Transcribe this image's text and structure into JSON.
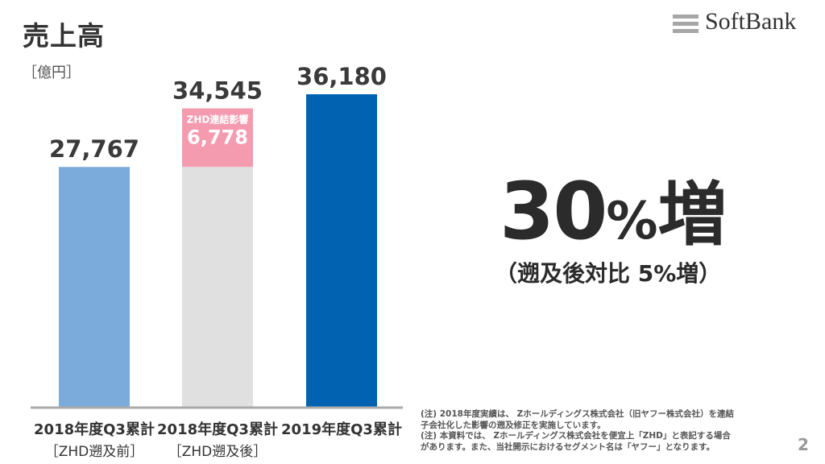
{
  "title": "売上高",
  "unit": "［億円］",
  "logo": {
    "text": "SoftBank"
  },
  "chart_data": {
    "type": "bar",
    "title": "売上高",
    "ylabel": "［億円］",
    "ylim": [
      0,
      36180
    ],
    "categories": [
      {
        "line1": "2018年度Q3累計",
        "line2": "［ZHD遡及前］"
      },
      {
        "line1": "2018年度Q3累計",
        "line2": "［ZHD遡及後］"
      },
      {
        "line1": "2019年度Q3累計",
        "line2": ""
      }
    ],
    "bars": [
      {
        "total": 27767,
        "total_label": "27,767",
        "segments": [
          {
            "value": 27767,
            "color": "#7aabdb"
          }
        ]
      },
      {
        "total": 34545,
        "total_label": "34,545",
        "segments": [
          {
            "value": 27767,
            "color": "#e0e0e0"
          },
          {
            "value": 6778,
            "color": "#f49bb0",
            "label_top": "ZHD連結影響",
            "label_value": "6,778"
          }
        ]
      },
      {
        "total": 36180,
        "total_label": "36,180",
        "segments": [
          {
            "value": 36180,
            "color": "#0062b1"
          }
        ]
      }
    ]
  },
  "highlight": {
    "number": "30",
    "percent": "%",
    "suffix": "増",
    "sub": "（遡及後対比 5%増）"
  },
  "notes": [
    "(注) 2018年度実績は、 Zホールディングス株式会社（旧ヤフー株式会社）を連結",
    "子会社化した影響の遡及修正を実施しています。",
    "(注) 本資料では、 Zホールディングス株式会社を便宜上「ZHD」と表記する場合",
    "があります。また、当社開示におけるセグメント名は「ヤフー」となります。"
  ],
  "page_number": "2"
}
